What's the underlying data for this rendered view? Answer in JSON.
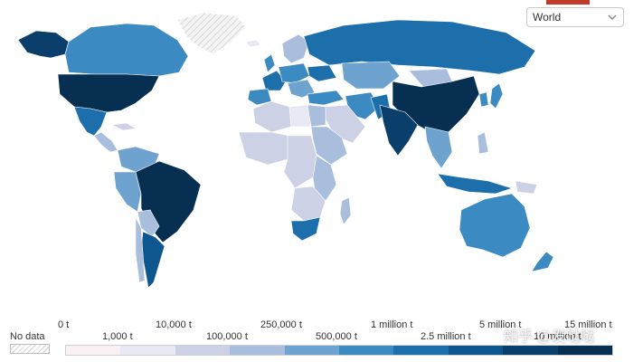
{
  "region_selector": {
    "value": "World",
    "icon": "chevron-down-icon"
  },
  "legend": {
    "no_data": "No data",
    "labels_top": [
      "0 t",
      "10,000 t",
      "250,000 t",
      "1 million t",
      "5 million t",
      "15 million t"
    ],
    "labels_bottom": [
      "1,000 t",
      "100,000 t",
      "500,000 t",
      "2.5 million t",
      "10 million t"
    ],
    "colors": [
      "#fbf0f3",
      "#e9e9f5",
      "#ccd1e6",
      "#a9bedd",
      "#6fa3cf",
      "#3b8ac2",
      "#1d6fab",
      "#0e568e",
      "#0a3e6b",
      "#062f52"
    ]
  },
  "watermark": "知乎 @发哒哒"
}
